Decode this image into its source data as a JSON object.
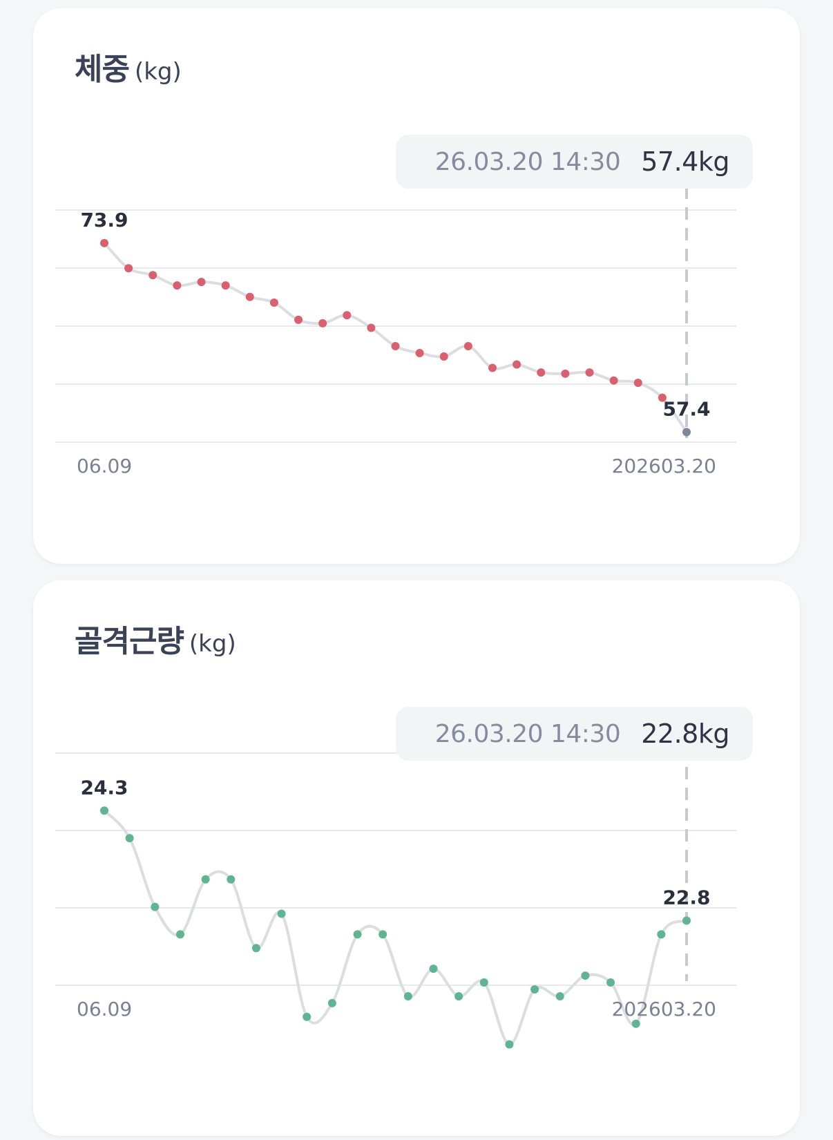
{
  "chart_data": [
    {
      "type": "line",
      "title": "체중",
      "unit": "(kg)",
      "tooltip": {
        "date": "26.03.20 14:30",
        "value": "57.4kg"
      },
      "x_labels": {
        "start": "06.09",
        "end": "202603.20"
      },
      "values": [
        73.9,
        71.7,
        71.1,
        70.2,
        70.5,
        70.2,
        69.2,
        68.7,
        67.2,
        66.9,
        67.6,
        66.5,
        64.9,
        64.3,
        64.0,
        64.9,
        63.0,
        63.3,
        62.6,
        62.5,
        62.6,
        61.9,
        61.7,
        60.4
      ],
      "last_value": 57.4,
      "first_label": "73.9",
      "last_label": "57.4",
      "point_color": "#d9606e",
      "last_point_color": "#7f889b",
      "ylim": [
        57,
        76
      ]
    },
    {
      "type": "line",
      "title": "골격근량",
      "unit": "(kg)",
      "tooltip": {
        "date": "26.03.20 14:30",
        "value": "22.8kg"
      },
      "x_labels": {
        "start": "06.09",
        "end": "202603.20"
      },
      "values": [
        24.3,
        24.1,
        23.6,
        23.4,
        23.8,
        23.8,
        23.3,
        23.55,
        22.8,
        22.9,
        23.4,
        23.4,
        22.95,
        23.15,
        22.95,
        23.05,
        22.6,
        23.0,
        22.95,
        23.1,
        23.05,
        22.75,
        23.4,
        23.5
      ],
      "first_label": "24.3",
      "last_label": "22.8",
      "point_color": "#5fb592",
      "ylim": [
        22,
        25
      ]
    }
  ],
  "colors": {
    "line": "#dcdde1",
    "grid": "#e8e9ec",
    "dash": "#c7c9cf"
  }
}
